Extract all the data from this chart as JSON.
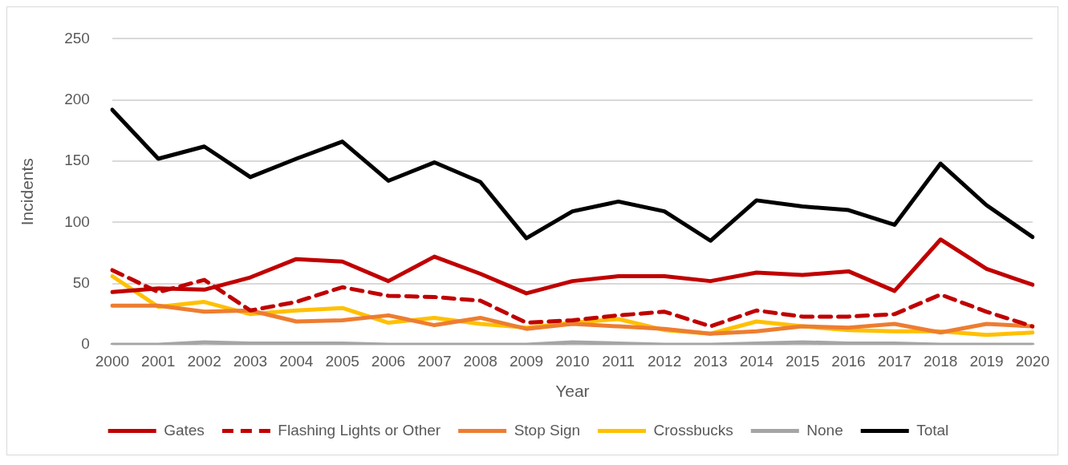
{
  "chart_data": {
    "type": "line",
    "xlabel": "Year",
    "ylabel": "Incidents",
    "categories": [
      "2000",
      "2001",
      "2002",
      "2003",
      "2004",
      "2005",
      "2006",
      "2007",
      "2008",
      "2009",
      "2010",
      "2011",
      "2012",
      "2013",
      "2014",
      "2015",
      "2016",
      "2017",
      "2018",
      "2019",
      "2020"
    ],
    "series": [
      {
        "name": "Gates",
        "color": "#c00000",
        "values": [
          43,
          46,
          45,
          55,
          70,
          68,
          52,
          72,
          58,
          42,
          52,
          56,
          56,
          52,
          59,
          57,
          60,
          44,
          86,
          62,
          49
        ]
      },
      {
        "name": "Flashing Lights or Other",
        "color": "#c00000",
        "line_style": "dashed",
        "values": [
          61,
          43,
          53,
          28,
          35,
          47,
          40,
          39,
          36,
          18,
          20,
          24,
          27,
          15,
          28,
          23,
          23,
          25,
          41,
          27,
          15
        ]
      },
      {
        "name": "Stop Sign",
        "color": "#ed7d31",
        "values": [
          32,
          32,
          27,
          28,
          19,
          20,
          24,
          16,
          22,
          13,
          17,
          15,
          13,
          9,
          11,
          15,
          14,
          17,
          10,
          17,
          15
        ]
      },
      {
        "name": "Crossbucks",
        "color": "#ffc000",
        "values": [
          56,
          31,
          35,
          25,
          28,
          30,
          18,
          22,
          17,
          14,
          18,
          21,
          12,
          9,
          19,
          15,
          12,
          11,
          11,
          8,
          10
        ]
      },
      {
        "name": "None",
        "color": "#a5a5a5",
        "values": [
          0,
          0,
          2,
          1,
          1,
          1,
          0,
          0,
          0,
          0,
          2,
          1,
          0,
          0,
          1,
          2,
          1,
          1,
          0,
          0,
          0
        ]
      },
      {
        "name": "Total",
        "color": "#000000",
        "values": [
          192,
          152,
          162,
          137,
          152,
          166,
          134,
          149,
          133,
          87,
          109,
          117,
          109,
          85,
          118,
          113,
          110,
          98,
          148,
          114,
          88
        ]
      }
    ],
    "ylim": [
      0,
      250
    ],
    "yticks": [
      0,
      50,
      100,
      150,
      200,
      250
    ],
    "grid": "y",
    "legend": "bottom",
    "line_style": "solid",
    "marker": "none"
  }
}
